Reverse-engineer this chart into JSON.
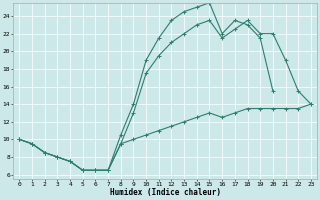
{
  "xlabel": "Humidex (Indice chaleur)",
  "bg_color": "#cce8e8",
  "line_color": "#2e7d6e",
  "xlim": [
    -0.5,
    23.5
  ],
  "ylim": [
    5.5,
    25.5
  ],
  "yticks": [
    6,
    8,
    10,
    12,
    14,
    16,
    18,
    20,
    22,
    24
  ],
  "xticks": [
    0,
    1,
    2,
    3,
    4,
    5,
    6,
    7,
    8,
    9,
    10,
    11,
    12,
    13,
    14,
    15,
    16,
    17,
    18,
    19,
    20,
    21,
    22,
    23
  ],
  "line1_x": [
    0,
    1,
    2,
    3,
    4,
    5,
    6,
    7,
    8,
    9,
    10,
    11,
    12,
    13,
    14,
    15,
    16,
    17,
    18,
    19,
    20
  ],
  "line1_y": [
    10,
    9.5,
    8.5,
    8.0,
    7.5,
    6.5,
    6.5,
    6.5,
    10.5,
    14,
    19,
    21.5,
    23.5,
    24.5,
    25,
    25.5,
    22,
    23.5,
    23,
    21.5,
    15.5
  ],
  "line2_x": [
    0,
    1,
    2,
    3,
    4,
    5,
    6,
    7,
    8,
    9,
    10,
    11,
    12,
    13,
    14,
    15,
    16,
    17,
    18,
    19,
    20,
    21,
    22,
    23
  ],
  "line2_y": [
    10,
    9.5,
    8.5,
    8.0,
    7.5,
    6.5,
    6.5,
    6.5,
    9.5,
    13.0,
    17.5,
    19.5,
    21.0,
    22.0,
    23.0,
    23.5,
    21.5,
    22.5,
    23.5,
    22.0,
    22.0,
    19.0,
    15.5,
    14.0
  ],
  "line3_x": [
    0,
    1,
    2,
    3,
    4,
    5,
    6,
    7,
    8,
    9,
    10,
    11,
    12,
    13,
    14,
    15,
    16,
    17,
    18,
    19,
    20,
    21,
    22,
    23
  ],
  "line3_y": [
    10,
    9.5,
    8.5,
    8.0,
    7.5,
    6.5,
    6.5,
    6.5,
    9.5,
    10.0,
    10.5,
    11.0,
    11.5,
    12.0,
    12.5,
    13.0,
    12.5,
    13.0,
    13.5,
    13.5,
    13.5,
    13.5,
    13.5,
    14.0
  ]
}
